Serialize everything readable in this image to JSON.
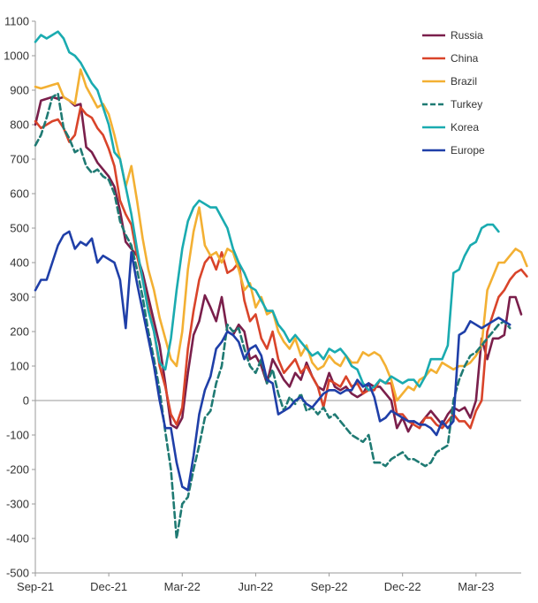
{
  "chart_data": {
    "type": "line",
    "title": "",
    "xlabel": "",
    "ylabel": "",
    "ylim": [
      -500,
      1100
    ],
    "yticks": [
      -500,
      -400,
      -300,
      -200,
      -100,
      0,
      100,
      200,
      300,
      400,
      500,
      600,
      700,
      800,
      900,
      1000,
      1100
    ],
    "xlim": [
      0,
      86
    ],
    "xticks": [
      {
        "x": 0,
        "label": "Sep-21"
      },
      {
        "x": 13,
        "label": "Dec-21"
      },
      {
        "x": 26,
        "label": "Mar-22"
      },
      {
        "x": 39,
        "label": "Jun-22"
      },
      {
        "x": 52,
        "label": "Sep-22"
      },
      {
        "x": 65,
        "label": "Dec-22"
      },
      {
        "x": 78,
        "label": "Mar-23"
      }
    ],
    "zero_line": true,
    "grid": false,
    "legend_position": "top-right",
    "series": [
      {
        "name": "Russia",
        "color": "#7a1f4b",
        "dash": false,
        "values": [
          800,
          870,
          875,
          880,
          875,
          880,
          870,
          855,
          860,
          735,
          720,
          690,
          670,
          650,
          620,
          550,
          460,
          440,
          420,
          370,
          300,
          230,
          160,
          50,
          -70,
          -80,
          -50,
          80,
          190,
          230,
          305,
          270,
          230,
          300,
          200,
          190,
          220,
          200,
          120,
          130,
          100,
          50,
          120,
          90,
          60,
          40,
          80,
          60,
          110,
          70,
          40,
          30,
          80,
          40,
          30,
          40,
          20,
          10,
          20,
          50,
          40,
          40,
          20,
          0,
          -80,
          -50,
          -90,
          -60,
          -70,
          -50,
          -30,
          -50,
          -70,
          -40,
          -20,
          -30,
          -20,
          -50,
          0,
          180,
          120,
          180,
          180,
          190,
          300,
          300,
          250
        ]
      },
      {
        "name": "China",
        "color": "#d9442a",
        "dash": false,
        "values": [
          810,
          790,
          800,
          810,
          815,
          790,
          750,
          770,
          850,
          830,
          820,
          790,
          770,
          730,
          680,
          580,
          540,
          510,
          420,
          350,
          270,
          200,
          100,
          40,
          -40,
          -70,
          -20,
          150,
          260,
          350,
          400,
          420,
          380,
          430,
          370,
          380,
          400,
          290,
          230,
          250,
          180,
          150,
          200,
          120,
          80,
          100,
          120,
          80,
          100,
          70,
          40,
          -20,
          60,
          50,
          40,
          70,
          40,
          50,
          20,
          30,
          30,
          60,
          50,
          50,
          -40,
          -40,
          -60,
          -70,
          -80,
          -50,
          -50,
          -70,
          -80,
          -60,
          -40,
          -60,
          -60,
          -80,
          -30,
          0,
          200,
          250,
          300,
          320,
          350,
          370,
          380,
          360
        ]
      },
      {
        "name": "Brazil",
        "color": "#f3b033",
        "dash": false,
        "values": [
          910,
          905,
          910,
          915,
          920,
          880,
          870,
          860,
          960,
          910,
          880,
          850,
          860,
          830,
          770,
          700,
          620,
          680,
          580,
          470,
          380,
          320,
          240,
          180,
          120,
          100,
          200,
          380,
          490,
          560,
          450,
          420,
          430,
          400,
          440,
          430,
          380,
          320,
          340,
          270,
          300,
          250,
          260,
          200,
          170,
          150,
          180,
          130,
          160,
          110,
          90,
          100,
          130,
          110,
          100,
          130,
          110,
          110,
          140,
          130,
          140,
          130,
          100,
          60,
          0,
          20,
          40,
          30,
          60,
          70,
          90,
          80,
          110,
          100,
          90,
          100,
          100,
          110,
          130,
          160,
          320,
          360,
          400,
          400,
          420,
          440,
          430,
          390
        ]
      },
      {
        "name": "Turkey",
        "color": "#1f7a73",
        "dash": true,
        "values": [
          740,
          770,
          820,
          880,
          890,
          790,
          760,
          720,
          730,
          680,
          660,
          670,
          650,
          640,
          600,
          520,
          480,
          450,
          380,
          300,
          200,
          120,
          30,
          -90,
          -200,
          -400,
          -300,
          -280,
          -200,
          -130,
          -50,
          -30,
          50,
          100,
          220,
          200,
          210,
          150,
          100,
          80,
          120,
          50,
          90,
          20,
          -30,
          10,
          -10,
          20,
          -30,
          -20,
          -40,
          -20,
          -50,
          -40,
          -60,
          -80,
          -100,
          -110,
          -120,
          -100,
          -180,
          -180,
          -190,
          -170,
          -160,
          -150,
          -170,
          -170,
          -180,
          -190,
          -180,
          -150,
          -140,
          -130,
          0,
          60,
          100,
          130,
          140,
          160,
          180,
          200,
          220,
          230,
          210
        ]
      },
      {
        "name": "Korea",
        "color": "#1aabb0",
        "dash": false,
        "values": [
          1040,
          1060,
          1050,
          1060,
          1070,
          1050,
          1010,
          1000,
          980,
          950,
          920,
          900,
          850,
          800,
          720,
          700,
          620,
          540,
          440,
          350,
          260,
          200,
          110,
          90,
          180,
          320,
          440,
          520,
          560,
          580,
          570,
          560,
          560,
          530,
          500,
          440,
          400,
          370,
          330,
          320,
          290,
          260,
          260,
          220,
          200,
          170,
          190,
          170,
          150,
          130,
          140,
          120,
          150,
          140,
          150,
          130,
          100,
          90,
          50,
          30,
          40,
          60,
          50,
          70,
          60,
          50,
          60,
          60,
          40,
          70,
          120,
          120,
          120,
          160,
          370,
          380,
          420,
          450,
          460,
          500,
          510,
          510,
          490
        ]
      },
      {
        "name": "Europe",
        "color": "#1f3fa8",
        "dash": false,
        "values": [
          320,
          350,
          350,
          400,
          450,
          480,
          490,
          440,
          460,
          450,
          470,
          400,
          420,
          410,
          400,
          350,
          210,
          430,
          340,
          260,
          180,
          100,
          0,
          -80,
          -80,
          -180,
          -250,
          -260,
          -160,
          -40,
          30,
          70,
          150,
          170,
          200,
          190,
          170,
          120,
          150,
          160,
          130,
          60,
          50,
          -40,
          -30,
          -20,
          0,
          10,
          -10,
          -20,
          0,
          20,
          30,
          30,
          20,
          30,
          30,
          60,
          40,
          50,
          10,
          -60,
          -50,
          -30,
          -40,
          -50,
          -60,
          -60,
          -70,
          -70,
          -80,
          -100,
          -60,
          -80,
          -60,
          190,
          200,
          230,
          220,
          210,
          220,
          230,
          240,
          230,
          220
        ]
      }
    ]
  }
}
